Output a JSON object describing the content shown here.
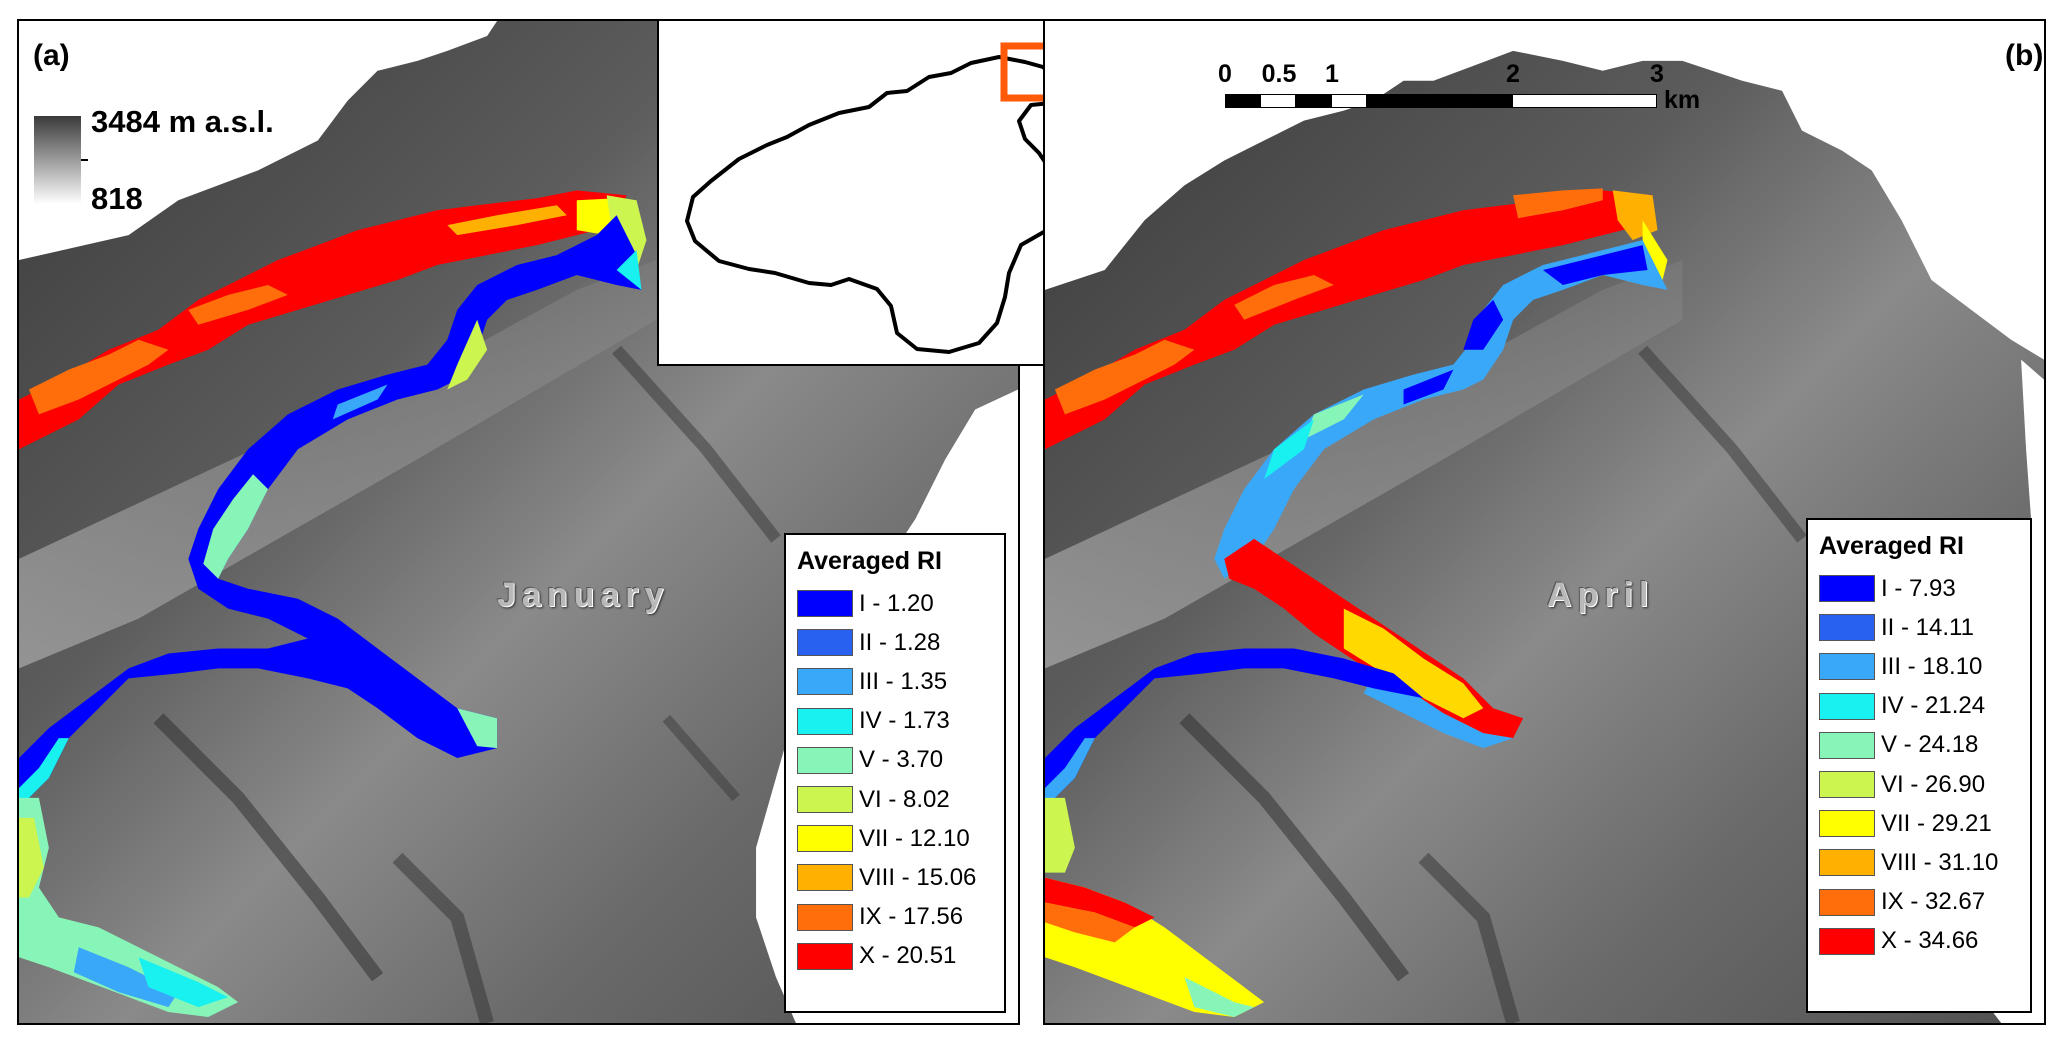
{
  "colors": {
    "class_I": "#0000ff",
    "class_II": "#2860f0",
    "class_III": "#3aa8f8",
    "class_IV": "#19f0f0",
    "class_V": "#88f5b8",
    "class_VI": "#ccf550",
    "class_VII": "#ffff00",
    "class_VIII": "#ffb000",
    "class_IX": "#ff6e0a",
    "class_X": "#ff0000",
    "inset_highlight": "#ff5a0a"
  },
  "elevation_legend": {
    "max_label": "3484 m a.s.l.",
    "min_label": "818"
  },
  "scale_bar": {
    "labels": [
      "0",
      "0.5",
      "1",
      "2",
      "3"
    ],
    "unit": "km"
  },
  "panel_a": {
    "tag": "(a)",
    "month": "January",
    "legend_title": "Averaged RI",
    "legend_items": [
      "I - 1.20",
      "II - 1.28",
      "III - 1.35",
      "IV - 1.73",
      "V - 3.70",
      "VI - 8.02",
      "VII - 12.10",
      "VIII - 15.06",
      "IX - 17.56",
      "X - 20.51"
    ]
  },
  "panel_b": {
    "tag": "(b)",
    "month": "April",
    "legend_title": "Averaged RI",
    "legend_items": [
      "I - 7.93",
      "II - 14.11",
      "III - 18.10",
      "IV - 21.24",
      "V - 24.18",
      "VI - 26.90",
      "VII - 29.21",
      "VIII - 31.10",
      "IX - 32.67",
      "X - 34.66"
    ]
  }
}
